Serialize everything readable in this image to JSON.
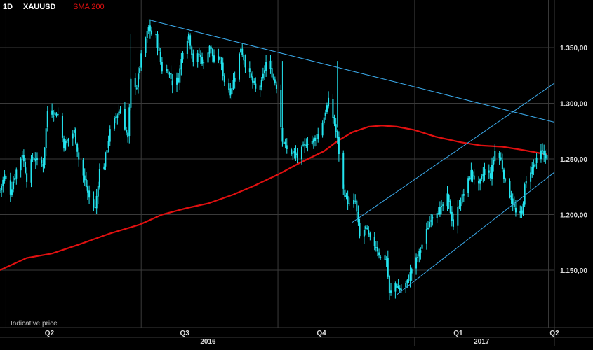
{
  "header": {
    "timeframe": "1D",
    "symbol": "XAUUSD",
    "indicator": "SMA 200"
  },
  "footer_note": "Indicative price",
  "colors": {
    "background": "#000000",
    "grid": "#3a3a3a",
    "candle": "#23e5f0",
    "sma": "#e01010",
    "trendline": "#3aa8e8",
    "axis_text": "#dddddd"
  },
  "chart_data": {
    "type": "candlestick",
    "x_start": "2016-03-28",
    "x_end": "2017-03-31",
    "quarter_ticks": [
      {
        "label": "Q2",
        "date": "2016-04-01"
      },
      {
        "label": "Q3",
        "date": "2016-07-01"
      },
      {
        "label": "Q4",
        "date": "2016-10-01"
      },
      {
        "label": "Q1",
        "date": "2017-01-01"
      },
      {
        "label": "Q2",
        "date": "2017-04-01"
      }
    ],
    "year_labels": [
      {
        "label": "2016",
        "date": "2016-08-15"
      },
      {
        "label": "2017",
        "date": "2017-02-15"
      }
    ],
    "year_dividers": [
      "2016-01-01",
      "2017-01-01"
    ],
    "y_ticks": [
      {
        "value": 1350,
        "label": "1.350,00"
      },
      {
        "value": 1300,
        "label": "1.300,00"
      },
      {
        "value": 1250,
        "label": "1.250,00"
      },
      {
        "value": 1200,
        "label": "1.200,00"
      },
      {
        "value": 1150,
        "label": "1.150,00"
      }
    ],
    "ylim": [
      1118,
      1380
    ],
    "price_anchors": [
      [
        "2016-03-28",
        1222
      ],
      [
        "2016-03-31",
        1235
      ],
      [
        "2016-04-04",
        1220
      ],
      [
        "2016-04-08",
        1240
      ],
      [
        "2016-04-12",
        1255
      ],
      [
        "2016-04-15",
        1232
      ],
      [
        "2016-04-19",
        1252
      ],
      [
        "2016-04-22",
        1248
      ],
      [
        "2016-04-26",
        1245
      ],
      [
        "2016-04-29",
        1293
      ],
      [
        "2016-05-02",
        1292
      ],
      [
        "2016-05-06",
        1290
      ],
      [
        "2016-05-10",
        1262
      ],
      [
        "2016-05-13",
        1268
      ],
      [
        "2016-05-17",
        1275
      ],
      [
        "2016-05-20",
        1250
      ],
      [
        "2016-05-24",
        1230
      ],
      [
        "2016-05-27",
        1215
      ],
      [
        "2016-05-31",
        1205
      ],
      [
        "2016-06-03",
        1240
      ],
      [
        "2016-06-06",
        1245
      ],
      [
        "2016-06-10",
        1275
      ],
      [
        "2016-06-14",
        1288
      ],
      [
        "2016-06-17",
        1295
      ],
      [
        "2016-06-22",
        1268
      ],
      [
        "2016-06-24",
        1320
      ],
      [
        "2016-06-28",
        1315
      ],
      [
        "2016-07-01",
        1342
      ],
      [
        "2016-07-06",
        1368
      ],
      [
        "2016-07-08",
        1362
      ],
      [
        "2016-07-11",
        1360
      ],
      [
        "2016-07-15",
        1330
      ],
      [
        "2016-07-19",
        1330
      ],
      [
        "2016-07-22",
        1318
      ],
      [
        "2016-07-26",
        1322
      ],
      [
        "2016-07-29",
        1348
      ],
      [
        "2016-08-02",
        1362
      ],
      [
        "2016-08-05",
        1338
      ],
      [
        "2016-08-09",
        1344
      ],
      [
        "2016-08-12",
        1335
      ],
      [
        "2016-08-16",
        1352
      ],
      [
        "2016-08-19",
        1338
      ],
      [
        "2016-08-23",
        1340
      ],
      [
        "2016-08-26",
        1320
      ],
      [
        "2016-08-30",
        1310
      ],
      [
        "2016-09-02",
        1325
      ],
      [
        "2016-09-06",
        1350
      ],
      [
        "2016-09-09",
        1335
      ],
      [
        "2016-09-13",
        1322
      ],
      [
        "2016-09-16",
        1312
      ],
      [
        "2016-09-20",
        1318
      ],
      [
        "2016-09-23",
        1337
      ],
      [
        "2016-09-27",
        1326
      ],
      [
        "2016-09-30",
        1315
      ],
      [
        "2016-10-04",
        1268
      ],
      [
        "2016-10-07",
        1258
      ],
      [
        "2016-10-11",
        1255
      ],
      [
        "2016-10-14",
        1252
      ],
      [
        "2016-10-18",
        1260
      ],
      [
        "2016-10-21",
        1266
      ],
      [
        "2016-10-25",
        1266
      ],
      [
        "2016-10-28",
        1272
      ],
      [
        "2016-11-01",
        1288
      ],
      [
        "2016-11-04",
        1302
      ],
      [
        "2016-11-08",
        1282
      ],
      [
        "2016-11-10",
        1267
      ],
      [
        "2016-11-14",
        1222
      ],
      [
        "2016-11-18",
        1208
      ],
      [
        "2016-11-22",
        1212
      ],
      [
        "2016-11-25",
        1180
      ],
      [
        "2016-11-29",
        1188
      ],
      [
        "2016-12-02",
        1177
      ],
      [
        "2016-12-06",
        1172
      ],
      [
        "2016-12-09",
        1161
      ],
      [
        "2016-12-13",
        1160
      ],
      [
        "2016-12-15",
        1128
      ],
      [
        "2016-12-19",
        1138
      ],
      [
        "2016-12-22",
        1132
      ],
      [
        "2016-12-27",
        1139
      ],
      [
        "2016-12-30",
        1151
      ],
      [
        "2017-01-04",
        1165
      ],
      [
        "2017-01-09",
        1185
      ],
      [
        "2017-01-12",
        1198
      ],
      [
        "2017-01-16",
        1204
      ],
      [
        "2017-01-19",
        1205
      ],
      [
        "2017-01-23",
        1216
      ],
      [
        "2017-01-27",
        1190
      ],
      [
        "2017-01-31",
        1210
      ],
      [
        "2017-02-03",
        1219
      ],
      [
        "2017-02-08",
        1238
      ],
      [
        "2017-02-13",
        1225
      ],
      [
        "2017-02-17",
        1240
      ],
      [
        "2017-02-21",
        1235
      ],
      [
        "2017-02-24",
        1257
      ],
      [
        "2017-02-28",
        1249
      ],
      [
        "2017-03-03",
        1228
      ],
      [
        "2017-03-07",
        1215
      ],
      [
        "2017-03-10",
        1201
      ],
      [
        "2017-03-14",
        1200
      ],
      [
        "2017-03-16",
        1225
      ],
      [
        "2017-03-20",
        1240
      ],
      [
        "2017-03-23",
        1246
      ],
      [
        "2017-03-27",
        1256
      ],
      [
        "2017-03-31",
        1252
      ]
    ],
    "sma_200": [
      [
        "2016-03-28",
        1150
      ],
      [
        "2016-04-15",
        1161
      ],
      [
        "2016-05-02",
        1165
      ],
      [
        "2016-05-20",
        1173
      ],
      [
        "2016-06-10",
        1183
      ],
      [
        "2016-06-30",
        1191
      ],
      [
        "2016-07-15",
        1200
      ],
      [
        "2016-08-01",
        1206
      ],
      [
        "2016-08-15",
        1210
      ],
      [
        "2016-09-01",
        1218
      ],
      [
        "2016-09-15",
        1226
      ],
      [
        "2016-10-01",
        1236
      ],
      [
        "2016-10-15",
        1246
      ],
      [
        "2016-11-01",
        1257
      ],
      [
        "2016-11-10",
        1266
      ],
      [
        "2016-11-20",
        1274
      ],
      [
        "2016-12-01",
        1279
      ],
      [
        "2016-12-10",
        1280
      ],
      [
        "2016-12-20",
        1279
      ],
      [
        "2017-01-01",
        1276
      ],
      [
        "2017-01-15",
        1270
      ],
      [
        "2017-02-01",
        1265
      ],
      [
        "2017-02-15",
        1262
      ],
      [
        "2017-03-01",
        1261
      ],
      [
        "2017-03-15",
        1258
      ],
      [
        "2017-03-31",
        1254
      ]
    ],
    "trendlines": [
      {
        "name": "resistance",
        "from": [
          "2016-07-06",
          1375
        ],
        "to": [
          "2017-04-05",
          1283
        ]
      },
      {
        "name": "channel-upper",
        "from": [
          "2016-11-20",
          1193
        ],
        "to": [
          "2017-04-05",
          1318
        ]
      },
      {
        "name": "channel-lower",
        "from": [
          "2016-12-20",
          1128
        ],
        "to": [
          "2017-04-05",
          1238
        ]
      }
    ],
    "grid": true,
    "legend": "top-left"
  }
}
